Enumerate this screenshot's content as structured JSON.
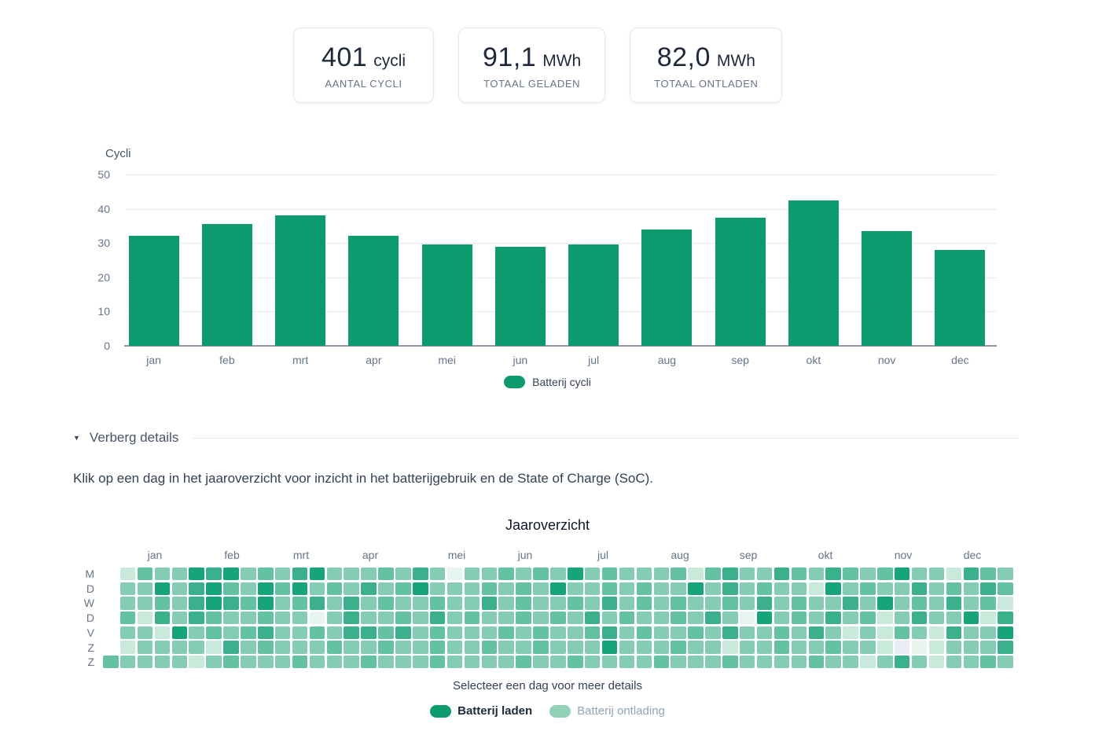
{
  "stats": [
    {
      "value": "401",
      "unit": "cycli",
      "label": "AANTAL CYCLI"
    },
    {
      "value": "91,1",
      "unit": "MWh",
      "label": "TOTAAL GELADEN"
    },
    {
      "value": "82,0",
      "unit": "MWh",
      "label": "TOTAAL ONTLADEN"
    }
  ],
  "details_toggle": {
    "label": "Verberg details",
    "icon": "caret-down"
  },
  "instruction": "Klik op een dag in het jaaroverzicht voor inzicht in het batterijgebruik en de State of Charge (SoC).",
  "colors": {
    "bar": "#0c9b6f",
    "charge": "#0c9b6f",
    "discharge": "#90d1b8",
    "grid": "#e7ebf0",
    "axis": "#8e99a9"
  },
  "chart_data": [
    {
      "type": "bar",
      "title": "",
      "ylabel": "Cycli",
      "xlabel": "",
      "categories": [
        "jan",
        "feb",
        "mrt",
        "apr",
        "mei",
        "jun",
        "jul",
        "aug",
        "sep",
        "okt",
        "nov",
        "dec"
      ],
      "values": [
        32,
        35.5,
        38,
        32,
        29.5,
        29,
        29.5,
        34,
        37.5,
        42.5,
        33.5,
        28
      ],
      "ylim": [
        0,
        50
      ],
      "yticks": [
        0,
        10,
        20,
        30,
        40,
        50
      ],
      "grid": true,
      "bar_color": "#0c9b6f",
      "legend_position": "bottom",
      "legend": [
        {
          "label": "Batterij cycli",
          "color": "#0c9b6f"
        }
      ]
    },
    {
      "type": "heatmap",
      "title": "Jaaroverzicht",
      "months": [
        "jan",
        "feb",
        "mrt",
        "apr",
        "mei",
        "jun",
        "jul",
        "aug",
        "sep",
        "okt",
        "nov",
        "dec"
      ],
      "day_labels": [
        "M",
        "D",
        "W",
        "D",
        "V",
        "Z",
        "Z"
      ],
      "caption": "Selecteer een dag voor meer details",
      "legend": [
        {
          "label": "Batterij laden",
          "color": "#0c9b6f"
        },
        {
          "label": "Batterij ontlading",
          "color": "#90d1b8"
        }
      ],
      "palette": {
        "0": "#e7f5ee",
        "1": "#c9e9db",
        "2": "#85ccb4",
        "3": "#63c2a4",
        "4": "#3bb08d",
        "5": "#16a57b",
        "x": "#e9ecf5"
      },
      "rows": [
        ".1322545232452223242022323252322231342243243235221432",
        ".2252453253523242352223232522323225242322152322423243",
        ".2232454352342423223224232232423232232423224252324231",
        ".3142432232202422324232232324232232420523242312422514",
        ".2215232342232443423222323223423223242232421213214225",
        ".122221423222322322322322322252223221223223221x012224",
        "32222123222322232223222232232222322232222322124212232"
      ]
    }
  ]
}
